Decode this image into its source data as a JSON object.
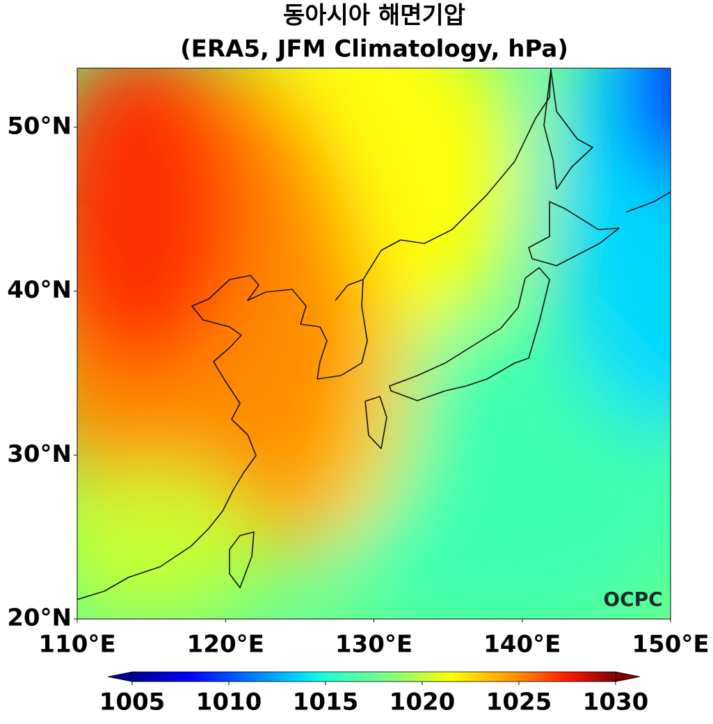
{
  "title": [
    "동아시아 해면기압",
    "(ERA5, JFM Climatology, hPa)"
  ],
  "map": {
    "xlim": [
      110,
      150
    ],
    "ylim": [
      20,
      53.6
    ],
    "xticks": [
      {
        "value": 110,
        "label": "110°E"
      },
      {
        "value": 120,
        "label": "120°E"
      },
      {
        "value": 130,
        "label": "130°E"
      },
      {
        "value": 140,
        "label": "140°E"
      },
      {
        "value": 150,
        "label": "150°E"
      }
    ],
    "yticks": [
      {
        "value": 20,
        "label": "20°N"
      },
      {
        "value": 30,
        "label": "30°N"
      },
      {
        "value": 40,
        "label": "40°N"
      },
      {
        "value": 50,
        "label": "50°N"
      }
    ]
  },
  "colorbar": {
    "clim": [
      1005,
      1030
    ],
    "ticks": [
      1005,
      1010,
      1015,
      1020,
      1025,
      1030
    ],
    "colormap": "jet",
    "extend": "both"
  },
  "logo": "OCPC"
}
